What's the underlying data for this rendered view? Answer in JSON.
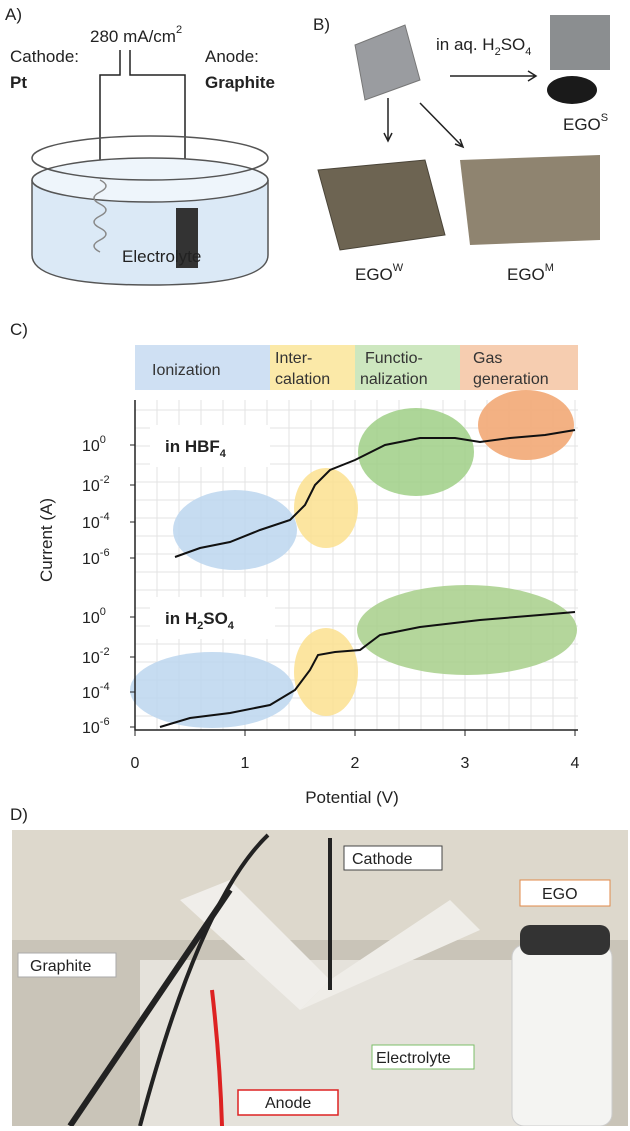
{
  "panel_a": {
    "label": "A)",
    "current": [
      "280 mA/cm",
      "2"
    ],
    "cathode": "Cathode:",
    "cathode_material": "Pt",
    "anode": "Anode:",
    "anode_material": "Graphite",
    "electrolyte": "Electrolyte"
  },
  "panel_b": {
    "label": "B)",
    "solution": [
      "in aq. H",
      "2",
      "SO",
      "4"
    ],
    "ego_s": [
      "EGO",
      "S"
    ],
    "ego_w": [
      "EGO",
      "W"
    ],
    "ego_m": [
      "EGO",
      "M"
    ]
  },
  "panel_c": {
    "label": "C)",
    "stages": [
      "Ionization",
      [
        "Inter-",
        "calation"
      ],
      [
        "Functio-",
        "nalization"
      ],
      [
        "Gas",
        "generation"
      ]
    ],
    "y_label": "Current (A)",
    "x_label": "Potential (V)",
    "upper_label": [
      "in HBF",
      "4"
    ],
    "lower_label": [
      "in H",
      "2",
      "SO",
      "4"
    ],
    "yticks": [
      [
        "10",
        "0"
      ],
      [
        "10",
        "-2"
      ],
      [
        "10",
        "-4"
      ],
      [
        "10",
        "-6"
      ]
    ],
    "xticks": [
      0,
      1,
      2,
      3,
      4
    ]
  },
  "panel_d": {
    "label": "D)",
    "cathode": "Cathode",
    "graphite": "Graphite",
    "ego": "EGO",
    "electrolyte": "Electrolyte",
    "anode": "Anode"
  }
}
